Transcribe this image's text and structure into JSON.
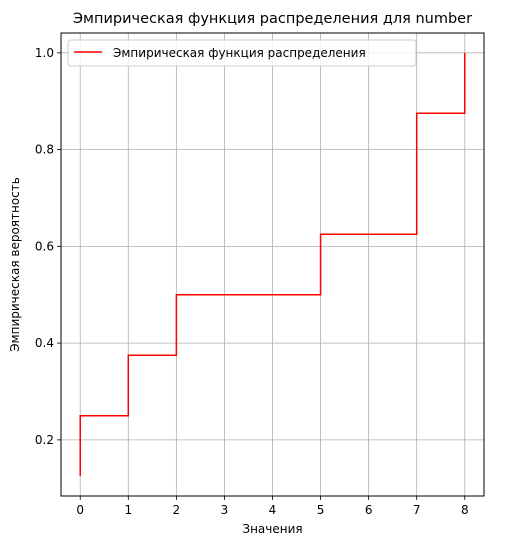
{
  "chart_data": {
    "type": "line",
    "step": true,
    "title": "Эмпирическая функция распределения для number",
    "xlabel": "Значения",
    "ylabel": "Эмпирическая вероятность",
    "xlim": [
      -0.4,
      8.4
    ],
    "ylim": [
      0.084,
      1.041
    ],
    "x_ticks": [
      "0",
      "1",
      "2",
      "3",
      "4",
      "5",
      "6",
      "7",
      "8"
    ],
    "y_ticks": [
      "0.2",
      "0.4",
      "0.6",
      "0.8",
      "1.0"
    ],
    "grid": true,
    "legend_position": "top-left",
    "series": [
      {
        "name": "Эмпирическая функция распределения",
        "color": "#ff0000",
        "points": [
          [
            0,
            0.125
          ],
          [
            0,
            0.25
          ],
          [
            1,
            0.25
          ],
          [
            1,
            0.375
          ],
          [
            2,
            0.375
          ],
          [
            2,
            0.5
          ],
          [
            5,
            0.5
          ],
          [
            5,
            0.625
          ],
          [
            7,
            0.625
          ],
          [
            7,
            0.875
          ],
          [
            8,
            0.875
          ],
          [
            8,
            1.0
          ]
        ]
      }
    ]
  }
}
